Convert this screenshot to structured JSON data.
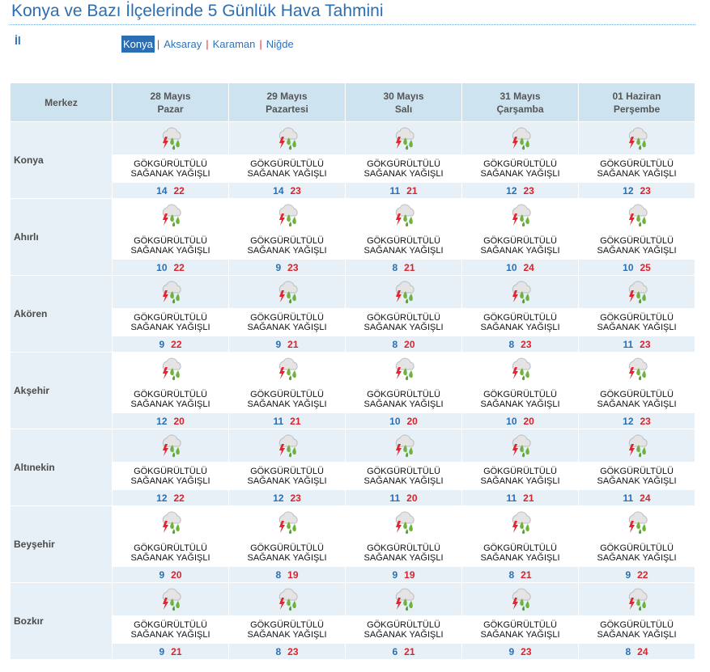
{
  "title": "Konya ve Bazı İlçelerinde 5 Günlük Hava Tahmini",
  "il_label": "İl",
  "provinces": [
    "Konya",
    "Aksaray",
    "Karaman",
    "Niğde"
  ],
  "active_province": "Konya",
  "merkez_header": "Merkez",
  "days": [
    {
      "date": "28 Mayıs",
      "day": "Pazar"
    },
    {
      "date": "29 Mayıs",
      "day": "Pazartesi"
    },
    {
      "date": "30 Mayıs",
      "day": "Salı"
    },
    {
      "date": "31 Mayıs",
      "day": "Çarşamba"
    },
    {
      "date": "01 Haziran",
      "day": "Perşembe"
    }
  ],
  "condition": [
    "GÖKGÜRÜLTÜLÜ",
    "SAĞANAK YAĞIŞLI"
  ],
  "icon": "thunderstorm-rain-icon",
  "colors": {
    "min_temp": "#2a6fb4",
    "max_temp": "#d9232c",
    "header_bg": "#cde3ef",
    "row_bg": "#e6f0f6"
  },
  "rows": [
    {
      "name": "Konya",
      "shade": true,
      "temps": [
        [
          14,
          22
        ],
        [
          14,
          23
        ],
        [
          11,
          21
        ],
        [
          12,
          23
        ],
        [
          12,
          23
        ]
      ]
    },
    {
      "name": "Ahırlı",
      "shade": false,
      "temps": [
        [
          10,
          22
        ],
        [
          9,
          23
        ],
        [
          8,
          21
        ],
        [
          10,
          24
        ],
        [
          10,
          25
        ]
      ]
    },
    {
      "name": "Akören",
      "shade": true,
      "temps": [
        [
          9,
          22
        ],
        [
          9,
          21
        ],
        [
          8,
          20
        ],
        [
          8,
          23
        ],
        [
          11,
          23
        ]
      ]
    },
    {
      "name": "Akşehir",
      "shade": false,
      "temps": [
        [
          12,
          20
        ],
        [
          11,
          21
        ],
        [
          10,
          20
        ],
        [
          10,
          20
        ],
        [
          12,
          23
        ]
      ]
    },
    {
      "name": "Altınekin",
      "shade": true,
      "temps": [
        [
          12,
          22
        ],
        [
          12,
          23
        ],
        [
          11,
          20
        ],
        [
          11,
          21
        ],
        [
          11,
          24
        ]
      ]
    },
    {
      "name": "Beyşehir",
      "shade": false,
      "temps": [
        [
          9,
          20
        ],
        [
          8,
          19
        ],
        [
          9,
          19
        ],
        [
          8,
          21
        ],
        [
          9,
          22
        ]
      ]
    },
    {
      "name": "Bozkır",
      "shade": true,
      "temps": [
        [
          9,
          21
        ],
        [
          8,
          23
        ],
        [
          6,
          21
        ],
        [
          9,
          23
        ],
        [
          8,
          24
        ]
      ]
    }
  ]
}
